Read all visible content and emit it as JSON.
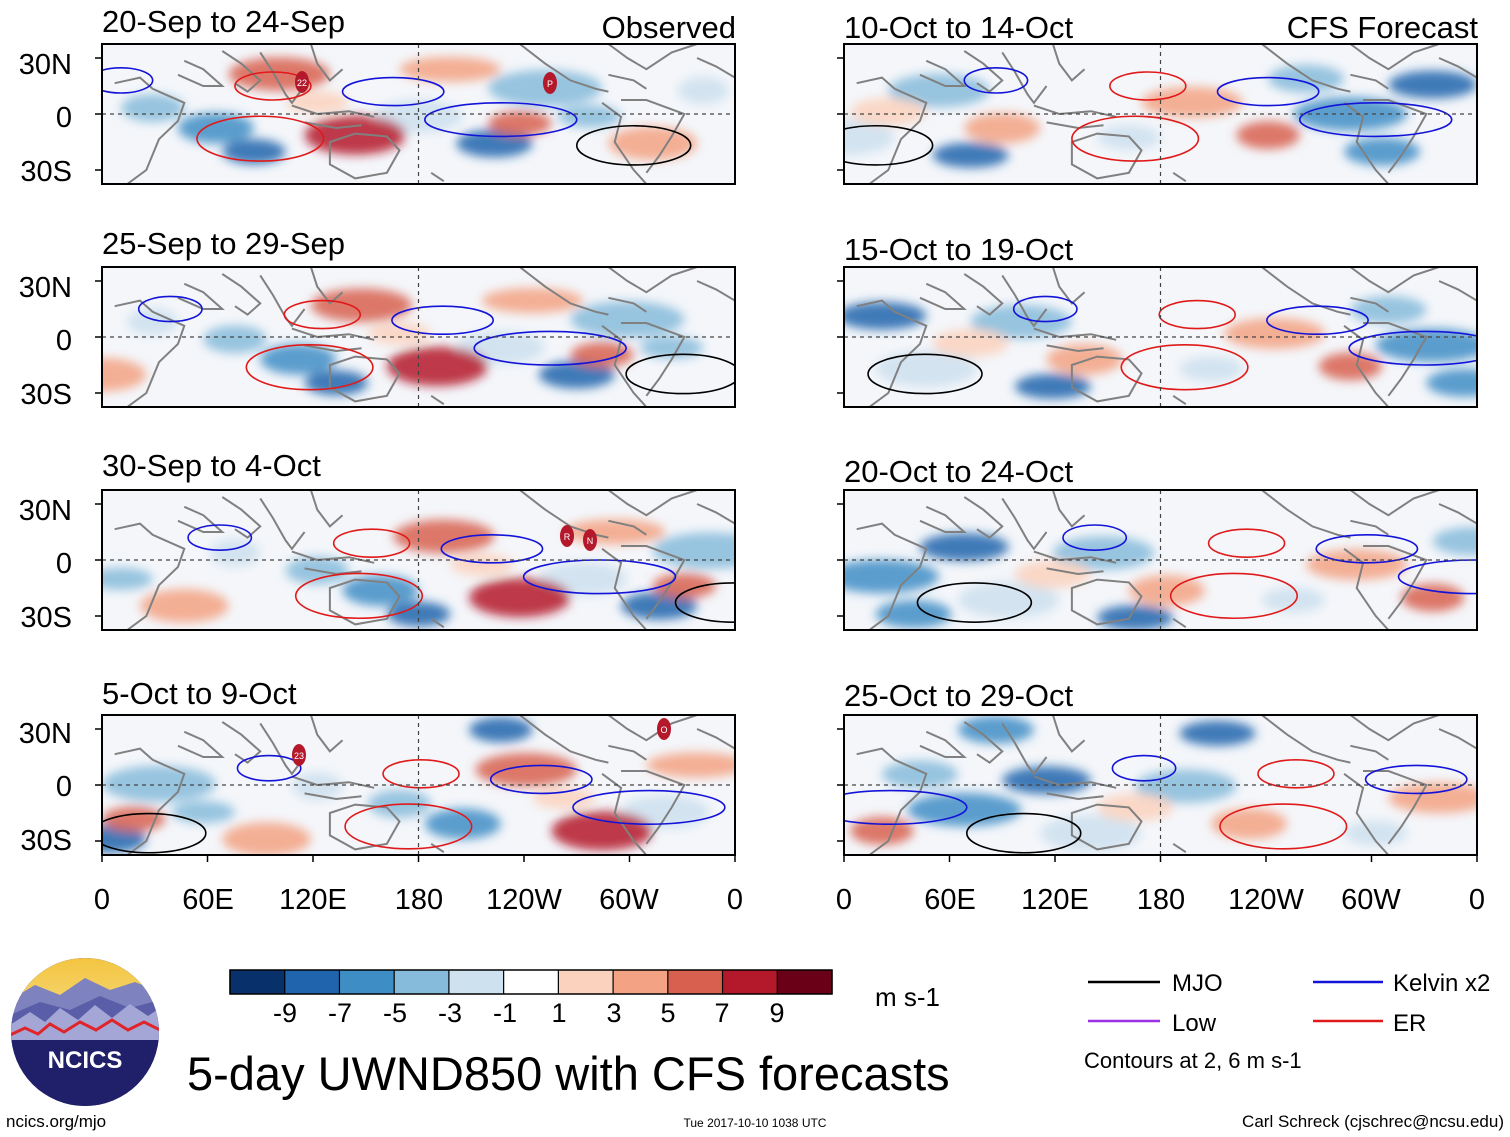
{
  "colors": {
    "scale": [
      "#08306b",
      "#1f64ad",
      "#3f8dc5",
      "#86bbdb",
      "#cde1ef",
      "#ffffff",
      "#fbd2bd",
      "#f3a283",
      "#d8604f",
      "#b4182b",
      "#6a0018"
    ],
    "mjo": "#000000",
    "kelvin": "#1414d8",
    "low": "#9b30e6",
    "er": "#e01a1a",
    "land": "#808080"
  },
  "headers": {
    "observed": "Observed",
    "forecast": "CFS Forecast"
  },
  "panels_left": [
    {
      "period": "20-Sep to 24-Sep"
    },
    {
      "period": "25-Sep to 29-Sep"
    },
    {
      "period": "30-Sep to 4-Oct"
    },
    {
      "period": "5-Oct to 9-Oct"
    }
  ],
  "panels_right": [
    {
      "period": "10-Oct to 14-Oct"
    },
    {
      "period": "15-Oct to 19-Oct"
    },
    {
      "period": "20-Oct to 24-Oct"
    },
    {
      "period": "25-Oct to 29-Oct"
    }
  ],
  "storm_labels": [
    "22",
    "P",
    "R",
    "N",
    "23",
    "O"
  ],
  "lat_labels": [
    "30N",
    "0",
    "30S"
  ],
  "lon_labels": [
    "0",
    "60E",
    "120E",
    "180",
    "120W",
    "60W",
    "0"
  ],
  "colorbar": {
    "ticks": [
      "-9",
      "-7",
      "-5",
      "-3",
      "-1",
      "1",
      "3",
      "5",
      "7",
      "9"
    ],
    "units": "m s-1"
  },
  "legend": {
    "mjo": "MJO",
    "kelvin": "Kelvin x2",
    "low": "Low",
    "er": "ER",
    "note": "Contours at 2, 6 m s-1"
  },
  "logo_text": "NCICS",
  "title": "5-day UWND850 with CFS forecasts",
  "footer": {
    "url": "ncics.org/mjo",
    "timestamp": "Tue 2017-10-10 1038 UTC",
    "author": "Carl Schreck (cjschrec@ncsu.edu)"
  }
}
